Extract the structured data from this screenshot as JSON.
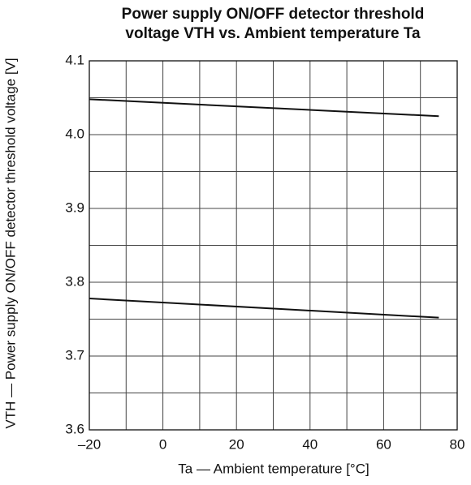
{
  "chart_data": {
    "type": "line",
    "title": [
      "Power supply ON/OFF detector threshold",
      "voltage VTH vs. Ambient temperature Ta"
    ],
    "xlabel": "Ta — Ambient temperature [°C]",
    "ylabel": "VTH — Power supply ON/OFF detector threshold voltage [V]",
    "x": [
      -20,
      75
    ],
    "series": [
      {
        "color": "#111111",
        "values": [
          4.048,
          4.025
        ]
      },
      {
        "color": "#111111",
        "values": [
          3.778,
          3.752
        ]
      }
    ],
    "xlim": [
      -20,
      80
    ],
    "xticks": [
      {
        "value": -20,
        "label": "–20"
      },
      0,
      20,
      40,
      60,
      80
    ],
    "x_minor_grid": [
      -10,
      10,
      30,
      50,
      70
    ],
    "ylim": [
      3.6,
      4.1
    ],
    "yticks": [
      3.6,
      3.7,
      3.8,
      3.9,
      {
        "value": 4.0,
        "label": "4.0"
      },
      4.1
    ],
    "y_minor_grid": [
      3.65,
      3.75,
      3.85,
      3.95,
      4.05
    ],
    "grid": true
  }
}
